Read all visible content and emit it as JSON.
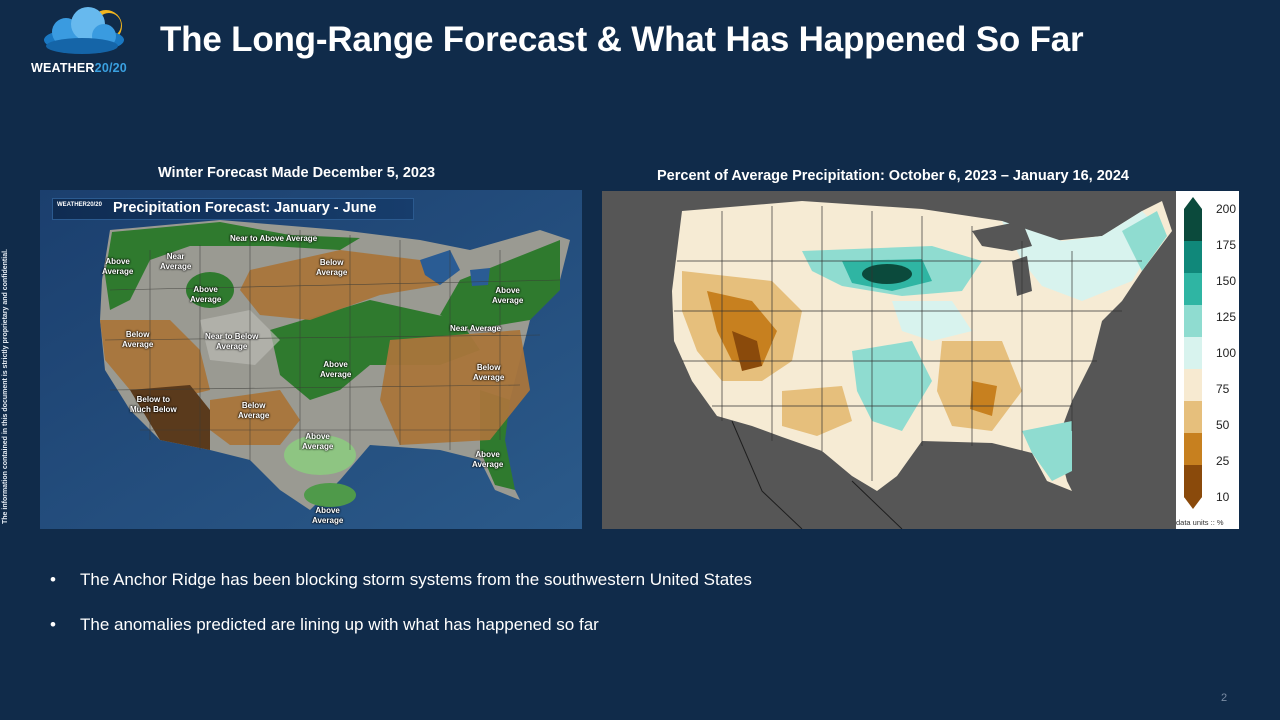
{
  "logo": {
    "brand": "WEATHER",
    "brand_accent": "20/20"
  },
  "title": "The Long-Range Forecast & What Has Happened So Far",
  "side_note": "The information contained in this document is strictly proprietary and confidential.",
  "left_panel": {
    "caption": "Winter Forecast Made December 5, 2023",
    "banner_logo": "WEATHER20/20",
    "banner_title": "Precipitation Forecast: January - June",
    "labels": [
      "Near to Above Average",
      "Above\nAverage",
      "Near\nAverage",
      "Above\nAverage",
      "Below\nAverage",
      "Above\nAverage",
      "Below\nAverage",
      "Near to Below\nAverage",
      "Near Average",
      "Above\nAverage",
      "Below\nAverage",
      "Below to\nMuch Below",
      "Below\nAverage",
      "Above\nAverage",
      "Above\nAverage",
      "Above\nAverage"
    ]
  },
  "right_panel": {
    "caption": "Percent of Average Precipitation:  October 6, 2023 – January 16, 2024",
    "legend_ticks": [
      "200",
      "175",
      "150",
      "125",
      "100",
      "75",
      "50",
      "25",
      "10"
    ],
    "legend_colors": [
      "#0b4a3c",
      "#10887a",
      "#2fb5a3",
      "#8fdcd0",
      "#d8f3ee",
      "#f7ead1",
      "#e6bf7c",
      "#c7801f",
      "#8a4a0b"
    ],
    "units_label": "data units :: %"
  },
  "bullets": [
    "The Anchor Ridge has been blocking storm systems from the southwestern United States",
    "The anomalies predicted are lining up with what has happened so far"
  ],
  "bullet_glyph": "•",
  "page_number": "2"
}
